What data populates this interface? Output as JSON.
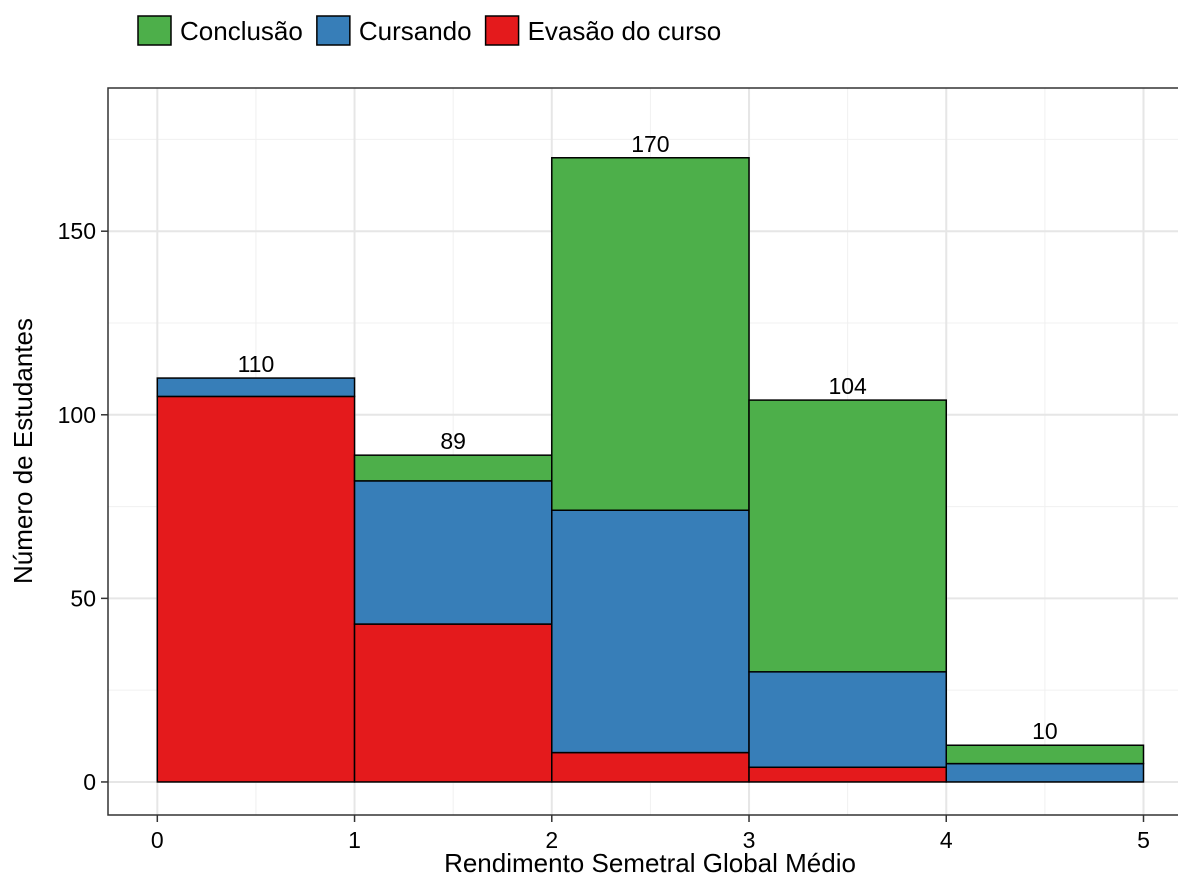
{
  "chart_data": {
    "type": "bar",
    "stacked": true,
    "xlabel": "Rendimento Semetral Global Médio",
    "ylabel": "Número de Estudantes",
    "xlim": [
      -0.25,
      5.18
    ],
    "ylim": [
      -9,
      189
    ],
    "x_ticks": [
      0,
      1,
      2,
      3,
      4,
      5
    ],
    "y_ticks": [
      0,
      50,
      100,
      150
    ],
    "bins": [
      [
        0,
        1
      ],
      [
        1,
        2
      ],
      [
        2,
        3
      ],
      [
        3,
        4
      ],
      [
        4,
        5
      ]
    ],
    "series": [
      {
        "name": "Evasão do curso",
        "color": "#e41a1c",
        "values": [
          105,
          43,
          8,
          4,
          0
        ]
      },
      {
        "name": "Cursando",
        "color": "#377eb8",
        "values": [
          5,
          39,
          66,
          26,
          5
        ]
      },
      {
        "name": "Conclusão",
        "color": "#4daf4a",
        "values": [
          0,
          7,
          96,
          74,
          5
        ]
      }
    ],
    "totals": [
      110,
      89,
      170,
      104,
      10
    ],
    "legend": {
      "position": "top",
      "entries": [
        "Conclusão",
        "Cursando",
        "Evasão do curso"
      ]
    },
    "grid": true
  }
}
